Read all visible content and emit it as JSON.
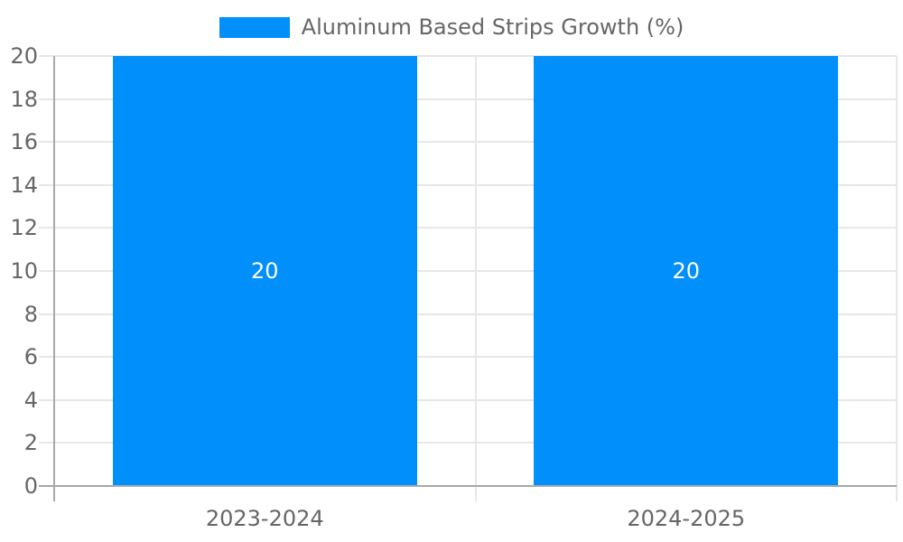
{
  "chart_data": {
    "type": "bar",
    "legend_label": "Aluminum Based Strips Growth (%)",
    "legend_position": "top",
    "categories": [
      "2023-2024",
      "2024-2025"
    ],
    "values": [
      20,
      20
    ],
    "value_labels": [
      "20",
      "20"
    ],
    "yticks": [
      "0",
      "2",
      "4",
      "6",
      "8",
      "10",
      "12",
      "14",
      "16",
      "18",
      "20"
    ],
    "ylim": [
      0,
      20
    ],
    "grid": true,
    "xlabel": "",
    "ylabel": "",
    "colors": {
      "bar": "#008FFB",
      "grid": "#E7E7E7",
      "axis": "#A8A8A8",
      "tick_text": "#666666",
      "bar_label": "#FFFFFF",
      "background": "#FFFFFF"
    }
  }
}
